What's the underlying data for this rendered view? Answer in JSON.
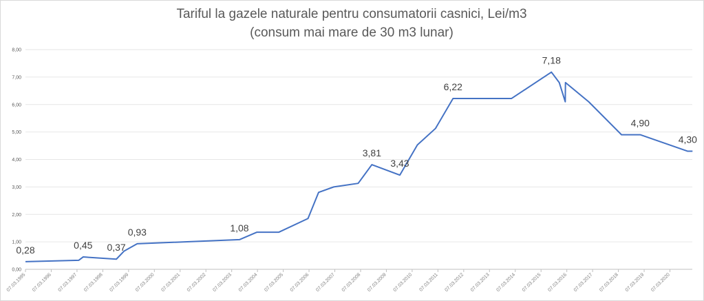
{
  "chart_data": {
    "type": "line",
    "title": "Tariful la gazele naturale pentru consumatorii casnici, Lei/m3",
    "subtitle": "(consum mai mare de 30 m3 lunar)",
    "xlabel": "",
    "ylabel": "",
    "ylim": [
      0,
      8
    ],
    "yticks": [
      "0,00",
      "1,00",
      "2,00",
      "3,00",
      "4,00",
      "5,00",
      "6,00",
      "7,00",
      "8,00"
    ],
    "xticks": [
      "07.03.1995",
      "07.03.1996",
      "07.03.1997",
      "07.03.1998",
      "07.03.1999",
      "07.03.2000",
      "07.03.2001",
      "07.03.2002",
      "07.03.2003",
      "07.03.2004",
      "07.03.2005",
      "07.03.2006",
      "07.03.2007",
      "07.03.2008",
      "07.03.2009",
      "07.03.2010",
      "07.03.2011",
      "07.03.2012",
      "07.03.2013",
      "07.03.2014",
      "07.03.2015",
      "07.03.2016",
      "07.03.2017",
      "07.03.2018",
      "07.03.2019",
      "07.03.2020"
    ],
    "grid": true,
    "legend": "none",
    "line_color": "#4472c4",
    "points": [
      {
        "date": "1995-03-07",
        "value": 0.28,
        "label": "0,28"
      },
      {
        "date": "1997-04-01",
        "value": 0.33
      },
      {
        "date": "1997-06-01",
        "value": 0.45,
        "label": "0,45"
      },
      {
        "date": "1998-09-15",
        "value": 0.37,
        "label": "0,37"
      },
      {
        "date": "1999-01-01",
        "value": 0.66
      },
      {
        "date": "1999-07-07",
        "value": 0.93,
        "label": "0,93"
      },
      {
        "date": "2003-06-25",
        "value": 1.08,
        "label": "1,08"
      },
      {
        "date": "2004-02-25",
        "value": 1.35
      },
      {
        "date": "2005-01-01",
        "value": 1.35
      },
      {
        "date": "2006-02-20",
        "value": 1.85
      },
      {
        "date": "2006-07-20",
        "value": 2.8
      },
      {
        "date": "2007-02-20",
        "value": 3.0
      },
      {
        "date": "2008-02-01",
        "value": 3.13
      },
      {
        "date": "2008-08-13",
        "value": 3.81,
        "label": "3,81"
      },
      {
        "date": "2009-09-13",
        "value": 3.43,
        "label": "3,43"
      },
      {
        "date": "2010-05-20",
        "value": 4.53
      },
      {
        "date": "2011-02-01",
        "value": 5.13
      },
      {
        "date": "2011-10-07",
        "value": 6.22,
        "label": "6,22"
      },
      {
        "date": "2014-01-13",
        "value": 6.22
      },
      {
        "date": "2015-08-01",
        "value": 7.18,
        "label": "7,18"
      },
      {
        "date": "2015-11-20",
        "value": 6.8
      },
      {
        "date": "2016-02-13",
        "value": 6.1
      },
      {
        "date": "2016-02-16",
        "value": 6.8
      },
      {
        "date": "2017-01-10",
        "value": 6.1
      },
      {
        "date": "2018-04-20",
        "value": 4.9
      },
      {
        "date": "2019-01-10",
        "value": 4.9,
        "label": "4,90"
      },
      {
        "date": "2020-11-13",
        "value": 4.3,
        "label": "4,30"
      },
      {
        "date": "2021-01-20",
        "value": 4.3
      }
    ]
  }
}
